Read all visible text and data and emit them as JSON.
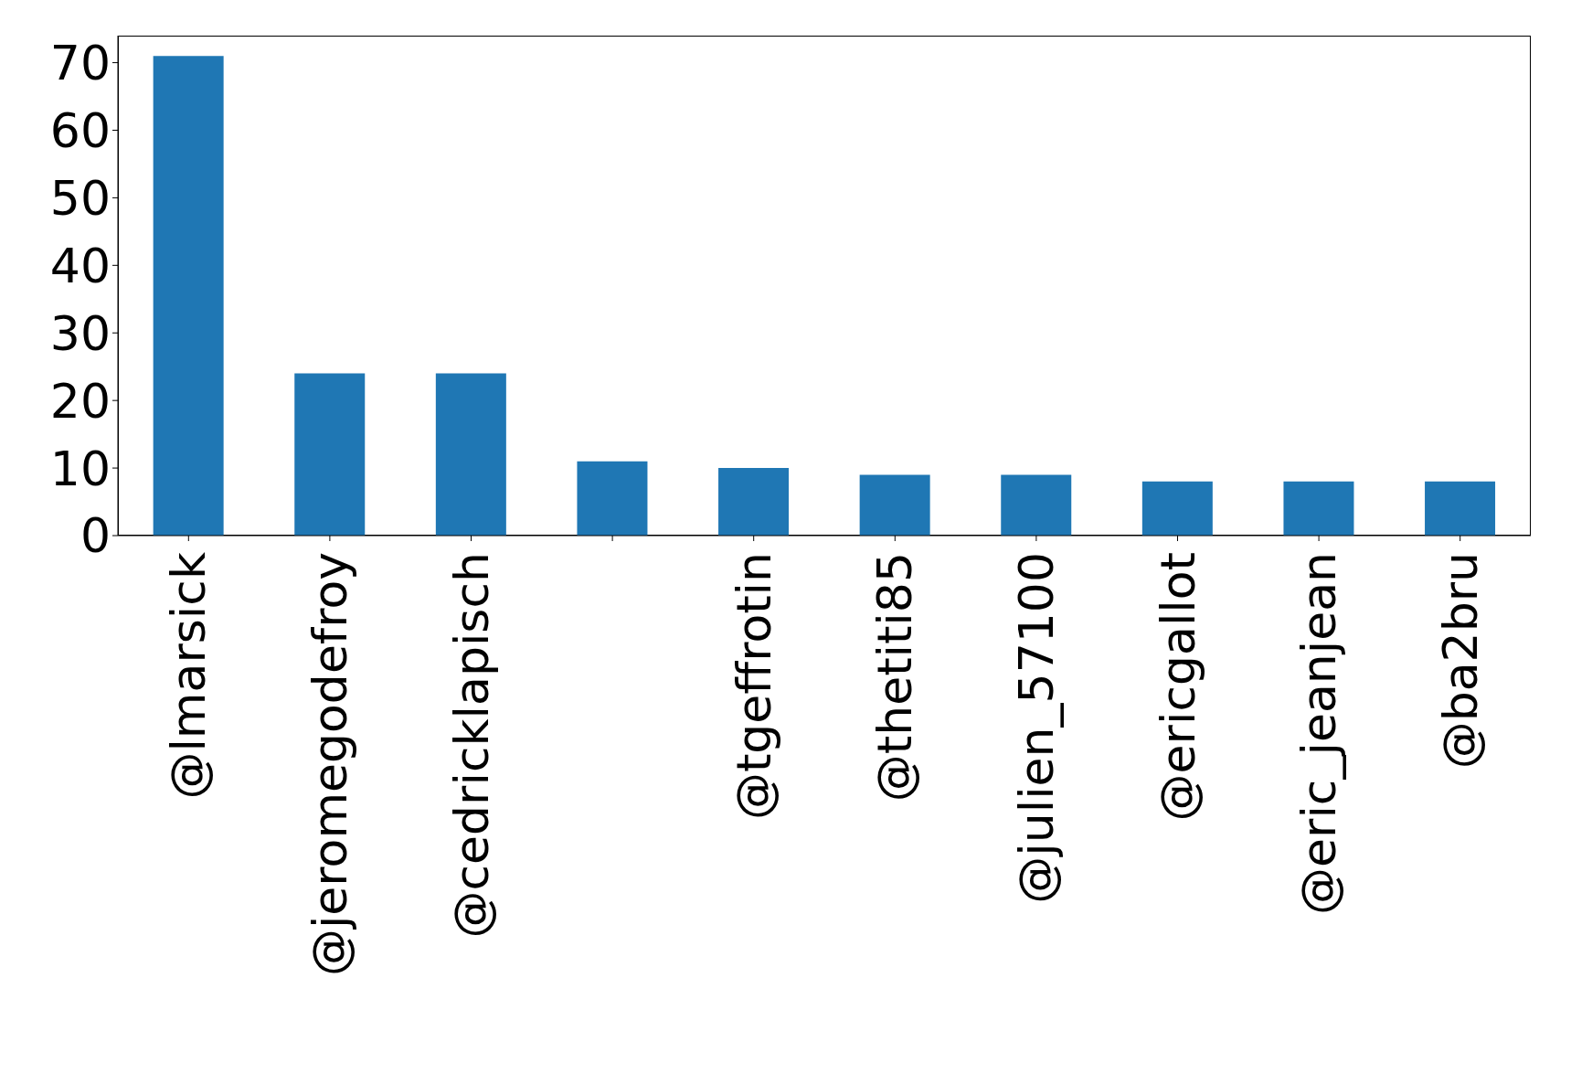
{
  "chart_data": {
    "type": "bar",
    "categories": [
      "@lmarsick",
      "@jeromegodefroy",
      "@cedricklapisch",
      null,
      "@tgeffrotin",
      "@thetiti85",
      "@julien_57100",
      "@ericgallot",
      "@eric_jeanjean",
      "@ba2bru"
    ],
    "values": [
      71,
      24,
      24,
      11,
      10,
      9,
      9,
      8,
      8,
      8
    ],
    "color": "#1f77b4",
    "ylim": [
      0,
      74
    ],
    "yticks": [
      0,
      10,
      20,
      30,
      40,
      50,
      60,
      70
    ],
    "grid": false
  }
}
